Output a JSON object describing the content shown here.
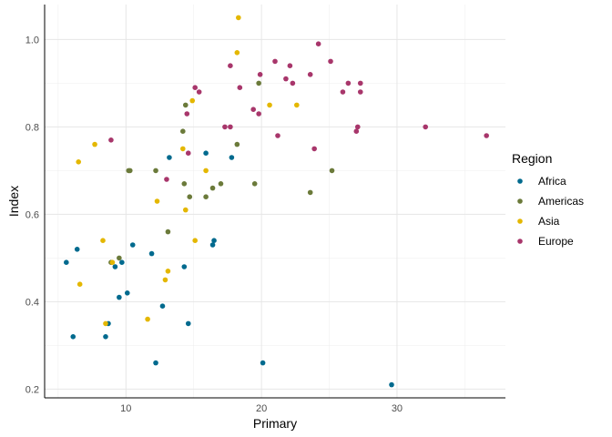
{
  "chart_data": {
    "type": "scatter",
    "xlabel": "Primary",
    "ylabel": "Index",
    "xlim": [
      4,
      38
    ],
    "ylim": [
      0.18,
      1.08
    ],
    "x_ticks": [
      10,
      20,
      30
    ],
    "y_ticks": [
      0.2,
      0.4,
      0.6,
      0.8,
      1.0
    ],
    "y_tick_labels": [
      "0.2",
      "0.4",
      "0.6",
      "0.8",
      "1.0"
    ],
    "grid": true,
    "legend": {
      "title": "Region",
      "position": "right"
    },
    "series": [
      {
        "name": "Africa",
        "color": "#006A8E",
        "points": [
          [
            5.6,
            0.49
          ],
          [
            6.1,
            0.32
          ],
          [
            6.4,
            0.52
          ],
          [
            8.5,
            0.32
          ],
          [
            8.7,
            0.35
          ],
          [
            9.2,
            0.48
          ],
          [
            9.5,
            0.41
          ],
          [
            9.7,
            0.49
          ],
          [
            10.1,
            0.42
          ],
          [
            10.5,
            0.53
          ],
          [
            11.9,
            0.51
          ],
          [
            12.2,
            0.26
          ],
          [
            12.7,
            0.39
          ],
          [
            13.2,
            0.73
          ],
          [
            14.3,
            0.48
          ],
          [
            14.6,
            0.35
          ],
          [
            15.9,
            0.74
          ],
          [
            16.4,
            0.53
          ],
          [
            16.5,
            0.54
          ],
          [
            17.8,
            0.73
          ],
          [
            20.1,
            0.26
          ],
          [
            29.6,
            0.21
          ]
        ]
      },
      {
        "name": "Americas",
        "color": "#6B7A3A",
        "points": [
          [
            8.9,
            0.49
          ],
          [
            9.5,
            0.5
          ],
          [
            10.2,
            0.7
          ],
          [
            10.3,
            0.7
          ],
          [
            12.2,
            0.7
          ],
          [
            13.1,
            0.56
          ],
          [
            14.2,
            0.79
          ],
          [
            14.3,
            0.67
          ],
          [
            14.4,
            0.85
          ],
          [
            14.7,
            0.64
          ],
          [
            15.9,
            0.64
          ],
          [
            16.4,
            0.66
          ],
          [
            17.0,
            0.67
          ],
          [
            18.2,
            0.76
          ],
          [
            19.5,
            0.67
          ],
          [
            19.8,
            0.9
          ],
          [
            23.6,
            0.65
          ],
          [
            25.2,
            0.7
          ]
        ]
      },
      {
        "name": "Asia",
        "color": "#E4B700",
        "points": [
          [
            6.5,
            0.72
          ],
          [
            6.6,
            0.44
          ],
          [
            7.7,
            0.76
          ],
          [
            8.3,
            0.54
          ],
          [
            8.5,
            0.35
          ],
          [
            9.0,
            0.49
          ],
          [
            11.6,
            0.36
          ],
          [
            12.3,
            0.63
          ],
          [
            12.9,
            0.45
          ],
          [
            13.1,
            0.47
          ],
          [
            14.2,
            0.75
          ],
          [
            14.4,
            0.61
          ],
          [
            14.9,
            0.86
          ],
          [
            15.1,
            0.54
          ],
          [
            15.9,
            0.7
          ],
          [
            18.2,
            0.97
          ],
          [
            18.3,
            1.05
          ],
          [
            20.6,
            0.85
          ],
          [
            22.6,
            0.85
          ]
        ]
      },
      {
        "name": "Europe",
        "color": "#A8366B",
        "points": [
          [
            8.9,
            0.77
          ],
          [
            13.0,
            0.68
          ],
          [
            14.5,
            0.83
          ],
          [
            14.6,
            0.74
          ],
          [
            15.1,
            0.89
          ],
          [
            15.4,
            0.88
          ],
          [
            17.3,
            0.8
          ],
          [
            17.7,
            0.8
          ],
          [
            17.7,
            0.94
          ],
          [
            18.4,
            0.89
          ],
          [
            19.4,
            0.84
          ],
          [
            19.8,
            0.83
          ],
          [
            19.9,
            0.92
          ],
          [
            21.0,
            0.95
          ],
          [
            21.2,
            0.78
          ],
          [
            21.8,
            0.91
          ],
          [
            22.1,
            0.94
          ],
          [
            22.3,
            0.9
          ],
          [
            23.6,
            0.92
          ],
          [
            23.9,
            0.75
          ],
          [
            24.2,
            0.99
          ],
          [
            25.1,
            0.95
          ],
          [
            26.0,
            0.88
          ],
          [
            26.4,
            0.9
          ],
          [
            27.0,
            0.79
          ],
          [
            27.1,
            0.8
          ],
          [
            27.3,
            0.88
          ],
          [
            27.3,
            0.9
          ],
          [
            32.1,
            0.8
          ],
          [
            36.6,
            0.78
          ]
        ]
      }
    ]
  }
}
